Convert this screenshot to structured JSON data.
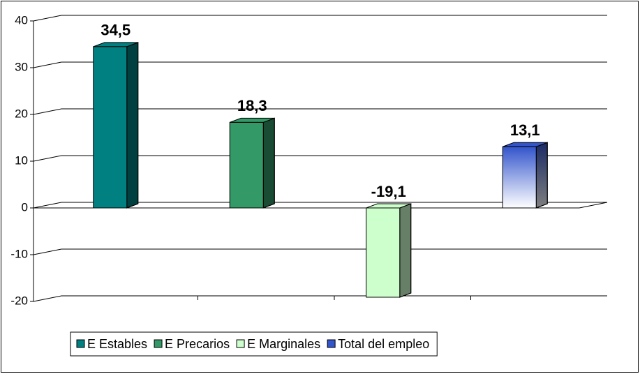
{
  "chart_data": {
    "type": "bar",
    "series": [
      {
        "name": "E Estables",
        "color": "#008080",
        "values": [
          34.5
        ],
        "value_labels": [
          "34,5"
        ]
      },
      {
        "name": "E Precarios",
        "color": "#339966",
        "values": [
          18.3
        ],
        "value_labels": [
          "18,3"
        ]
      },
      {
        "name": "E Marginales",
        "color": "#ccffcc",
        "values": [
          -19.1
        ],
        "value_labels": [
          "-19,1"
        ]
      },
      {
        "name": "Total del empleo",
        "color": "#3355cc",
        "values": [
          13.1
        ],
        "value_labels": [
          "13,1"
        ],
        "gradient": true
      }
    ],
    "ylim": [
      -20,
      40
    ],
    "yticks": [
      -20,
      -10,
      0,
      10,
      20,
      30,
      40
    ],
    "grid": true,
    "legend": "bottom"
  }
}
